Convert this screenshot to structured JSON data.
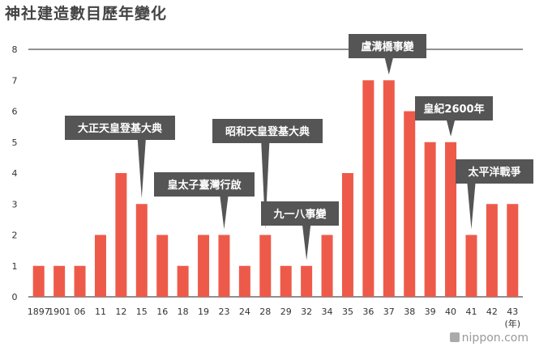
{
  "title": "神社建造數目歷年變化",
  "logo_text": "nippon.com",
  "colors": {
    "bar": "#ee5a4a",
    "callout": "#555555",
    "axis_line": "#222222"
  },
  "chart_data": {
    "type": "bar",
    "title": "神社建造數目歷年變化",
    "x_unit": "(年)",
    "categories": [
      "1897",
      "1901",
      "06",
      "11",
      "12",
      "15",
      "16",
      "18",
      "19",
      "23",
      "24",
      "28",
      "29",
      "32",
      "34",
      "35",
      "36",
      "37",
      "38",
      "39",
      "40",
      "41",
      "42",
      "43"
    ],
    "values": [
      1,
      1,
      1,
      2,
      4,
      3,
      2,
      1,
      2,
      2,
      1,
      2,
      1,
      1,
      2,
      4,
      7,
      7,
      6,
      5,
      5,
      2,
      3,
      3
    ],
    "ylim": [
      0,
      8
    ],
    "yticks": [
      0,
      1,
      2,
      3,
      4,
      5,
      6,
      7,
      8
    ],
    "grid": false,
    "annotations": [
      {
        "text": "大正天皇登基大典",
        "category": "15"
      },
      {
        "text": "皇太子臺灣行啟",
        "category": "23"
      },
      {
        "text": "昭和天皇登基大典",
        "category": "28"
      },
      {
        "text": "九一八事變",
        "category": "32"
      },
      {
        "text": "盧溝橋事變",
        "category": "37"
      },
      {
        "text": "皇紀2600年",
        "category": "40"
      },
      {
        "text": "太平洋戰爭",
        "category": "41"
      }
    ]
  }
}
